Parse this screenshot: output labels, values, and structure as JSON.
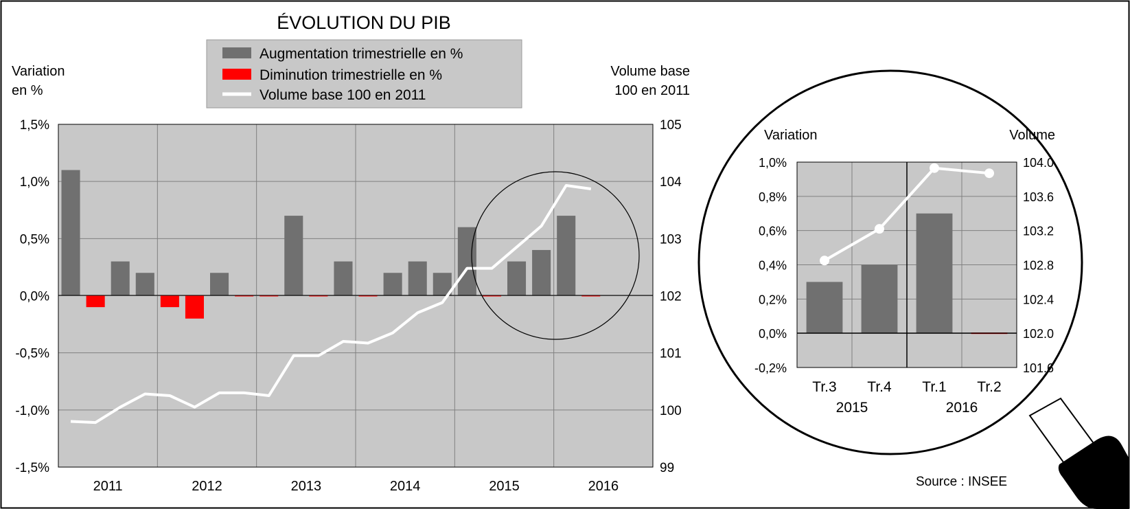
{
  "chart_data": [
    {
      "type": "bar",
      "title": "ÉVOLUTION DU PIB",
      "ylabel_left": [
        "Variation",
        "en %"
      ],
      "ylabel_right": [
        "Volume base",
        "100 en 2011"
      ],
      "left_ticks": [
        "1,5%",
        "1,0%",
        "0,5%",
        "0,0%",
        "-0,5%",
        "-1,0%",
        "-1,5%"
      ],
      "right_ticks": [
        "105",
        "104",
        "103",
        "102",
        "101",
        "100",
        "99"
      ],
      "ylim_left": [
        -1.5,
        1.5
      ],
      "ylim_right": [
        99,
        105
      ],
      "grid": true,
      "legend": {
        "placement": "top",
        "entries": [
          {
            "label": "Augmentation trimestrielle en %",
            "color": "#707070",
            "kind": "bar"
          },
          {
            "label": "Diminution trimestrielle en %",
            "color": "#ff0000",
            "kind": "bar"
          },
          {
            "label": "Volume base 100 en  2011",
            "color": "#ffffff",
            "kind": "line"
          }
        ]
      },
      "years": [
        "2011",
        "2012",
        "2013",
        "2014",
        "2015",
        "2016"
      ],
      "quarter_values": [
        1.1,
        -0.1,
        0.3,
        0.2,
        -0.1,
        -0.2,
        0.2,
        0.0,
        0.0,
        0.7,
        0.0,
        0.3,
        0.0,
        0.2,
        0.3,
        0.2,
        0.6,
        0.0,
        0.3,
        0.4,
        0.7,
        0.0
      ],
      "volume_index": [
        99.8,
        99.78,
        100.05,
        100.28,
        100.25,
        100.05,
        100.3,
        100.3,
        100.25,
        100.95,
        100.95,
        101.2,
        101.17,
        101.35,
        101.7,
        101.88,
        102.48,
        102.48,
        102.85,
        103.22,
        103.93,
        103.87
      ]
    },
    {
      "type": "bar",
      "ylabel_left": "Variation",
      "ylabel_right": "Volume",
      "left_ticks": [
        "1,0%",
        "0,8%",
        "0,6%",
        "0,4%",
        "0,2%",
        "0,0%",
        "-0,2%"
      ],
      "right_ticks": [
        "104.0",
        "103.6",
        "103.2",
        "102.8",
        "102.4",
        "102.0",
        "101.6"
      ],
      "ylim_left": [
        -0.2,
        1.0
      ],
      "ylim_right": [
        101.6,
        104.0
      ],
      "categories": [
        "Tr.3",
        "Tr.4",
        "Tr.1",
        "Tr.2"
      ],
      "years": [
        "2015",
        "2016"
      ],
      "quarter_values": [
        0.3,
        0.4,
        0.7,
        0.0
      ],
      "volume_index": [
        102.85,
        103.22,
        103.93,
        103.87
      ]
    }
  ],
  "source": "Source : INSEE",
  "colors": {
    "increase": "#707070",
    "decrease": "#ff0000",
    "volume_line": "#ffffff",
    "plot_bg": "#c8c8c8",
    "gridline": "#808080"
  }
}
